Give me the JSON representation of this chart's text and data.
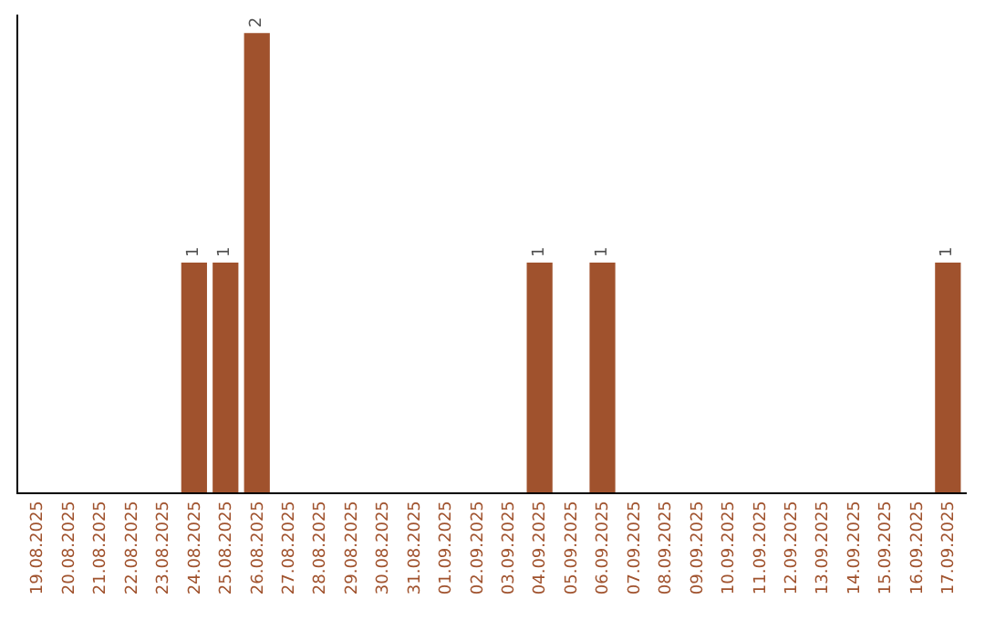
{
  "chart_data": {
    "type": "bar",
    "categories": [
      "19.08.2025",
      "20.08.2025",
      "21.08.2025",
      "22.08.2025",
      "23.08.2025",
      "24.08.2025",
      "25.08.2025",
      "26.08.2025",
      "27.08.2025",
      "28.08.2025",
      "29.08.2025",
      "30.08.2025",
      "31.08.2025",
      "01.09.2025",
      "02.09.2025",
      "03.09.2025",
      "04.09.2025",
      "05.09.2025",
      "06.09.2025",
      "07.09.2025",
      "08.09.2025",
      "09.09.2025",
      "10.09.2025",
      "11.09.2025",
      "12.09.2025",
      "13.09.2025",
      "14.09.2025",
      "15.09.2025",
      "16.09.2025",
      "17.09.2025"
    ],
    "values": [
      0,
      0,
      0,
      0,
      0,
      1,
      1,
      2,
      0,
      0,
      0,
      0,
      0,
      0,
      0,
      0,
      1,
      0,
      1,
      0,
      0,
      0,
      0,
      0,
      0,
      0,
      0,
      0,
      0,
      1
    ],
    "value_labels": [
      null,
      null,
      null,
      null,
      null,
      "1",
      "1",
      "2",
      null,
      null,
      null,
      null,
      null,
      null,
      null,
      null,
      "1",
      null,
      "1",
      null,
      null,
      null,
      null,
      null,
      null,
      null,
      null,
      null,
      null,
      "1"
    ],
    "color": "#a0522d",
    "tick_labels": "x",
    "legend": false
  }
}
